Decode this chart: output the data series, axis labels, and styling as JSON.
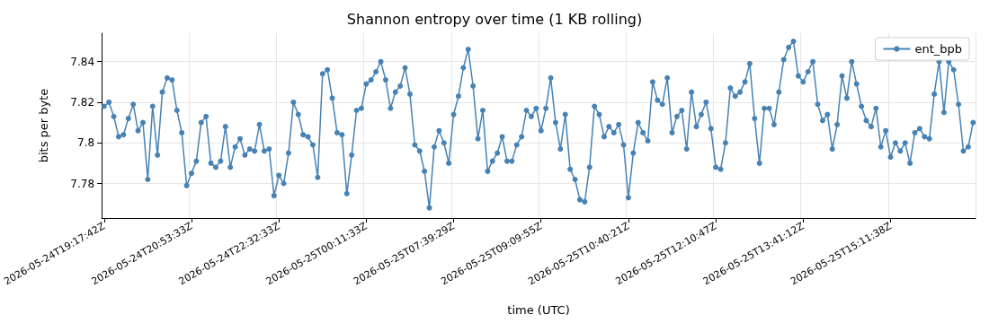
{
  "chart_data": {
    "type": "line",
    "title": "Shannon entropy over time (1 KB rolling)",
    "xlabel": "time (UTC)",
    "ylabel": "bits per byte",
    "categories": [
      "2026-05-24T19:17:42Z",
      null,
      null,
      null,
      null,
      null,
      null,
      null,
      null,
      null,
      null,
      null,
      null,
      null,
      null,
      null,
      null,
      null,
      "2026-05-24T20:53:33Z",
      null,
      null,
      null,
      null,
      null,
      null,
      null,
      null,
      null,
      null,
      null,
      null,
      null,
      null,
      null,
      null,
      null,
      "2026-05-24T22:32:33Z",
      null,
      null,
      null,
      null,
      null,
      null,
      null,
      null,
      null,
      null,
      null,
      null,
      null,
      null,
      null,
      null,
      null,
      "2026-05-25T00:11:33Z",
      null,
      null,
      null,
      null,
      null,
      null,
      null,
      null,
      null,
      null,
      null,
      null,
      null,
      null,
      null,
      null,
      null,
      "2026-05-25T07:39:29Z",
      null,
      null,
      null,
      null,
      null,
      null,
      null,
      null,
      null,
      null,
      null,
      null,
      null,
      null,
      null,
      null,
      null,
      "2026-05-25T09:09:55Z",
      null,
      null,
      null,
      null,
      null,
      null,
      null,
      null,
      null,
      null,
      null,
      null,
      null,
      null,
      null,
      null,
      null,
      "2026-05-25T10:40:21Z",
      null,
      null,
      null,
      null,
      null,
      null,
      null,
      null,
      null,
      null,
      null,
      null,
      null,
      null,
      null,
      null,
      null,
      "2026-05-25T12:10:47Z",
      null,
      null,
      null,
      null,
      null,
      null,
      null,
      null,
      null,
      null,
      null,
      null,
      null,
      null,
      null,
      null,
      null,
      "2026-05-25T13:41:12Z",
      null,
      null,
      null,
      null,
      null,
      null,
      null,
      null,
      null,
      null,
      null,
      null,
      null,
      null,
      null,
      null,
      null,
      "2026-05-25T15:11:38Z",
      null,
      null,
      null,
      null,
      null,
      null,
      null,
      null,
      null,
      null,
      null,
      null,
      null,
      null,
      null,
      null,
      null
    ],
    "series": [
      {
        "name": "ent_bpb",
        "color": "#4682b4",
        "values": [
          7.818,
          7.82,
          7.813,
          7.803,
          7.804,
          7.812,
          7.819,
          7.806,
          7.81,
          7.782,
          7.818,
          7.794,
          7.825,
          7.832,
          7.831,
          7.816,
          7.805,
          7.779,
          7.785,
          7.791,
          7.81,
          7.813,
          7.79,
          7.788,
          7.791,
          7.808,
          7.788,
          7.798,
          7.802,
          7.794,
          7.797,
          7.796,
          7.809,
          7.796,
          7.797,
          7.774,
          7.784,
          7.78,
          7.795,
          7.82,
          7.814,
          7.804,
          7.803,
          7.799,
          7.783,
          7.834,
          7.836,
          7.822,
          7.805,
          7.804,
          7.775,
          7.794,
          7.816,
          7.817,
          7.829,
          7.831,
          7.835,
          7.84,
          7.831,
          7.817,
          7.825,
          7.828,
          7.837,
          7.824,
          7.799,
          7.796,
          7.786,
          7.768,
          7.798,
          7.806,
          7.8,
          7.79,
          7.814,
          7.823,
          7.837,
          7.846,
          7.828,
          7.802,
          7.816,
          7.786,
          7.791,
          7.795,
          7.803,
          7.791,
          7.791,
          7.799,
          7.803,
          7.816,
          7.813,
          7.817,
          7.806,
          7.817,
          7.832,
          7.81,
          7.797,
          7.814,
          7.787,
          7.782,
          7.772,
          7.771,
          7.788,
          7.818,
          7.814,
          7.803,
          7.808,
          7.805,
          7.809,
          7.799,
          7.773,
          7.795,
          7.81,
          7.805,
          7.801,
          7.83,
          7.821,
          7.819,
          7.832,
          7.805,
          7.813,
          7.816,
          7.797,
          7.825,
          7.808,
          7.814,
          7.82,
          7.807,
          7.788,
          7.787,
          7.8,
          7.827,
          7.823,
          7.825,
          7.83,
          7.839,
          7.812,
          7.79,
          7.817,
          7.817,
          7.809,
          7.825,
          7.841,
          7.847,
          7.85,
          7.833,
          7.83,
          7.835,
          7.84,
          7.819,
          7.811,
          7.814,
          7.797,
          7.809,
          7.833,
          7.822,
          7.84,
          7.829,
          7.818,
          7.811,
          7.808,
          7.817,
          7.798,
          7.806,
          7.793,
          7.8,
          7.796,
          7.8,
          7.79,
          7.805,
          7.807,
          7.803,
          7.802,
          7.824,
          7.84,
          7.815,
          7.84,
          7.836,
          7.819,
          7.796,
          7.798,
          7.81
        ]
      }
    ],
    "ylim": [
      7.763,
      7.854
    ],
    "yticks": [
      7.78,
      7.8,
      7.82,
      7.84
    ],
    "grid": true,
    "legend": "top right",
    "marker": "circle",
    "line_style": "solid"
  }
}
